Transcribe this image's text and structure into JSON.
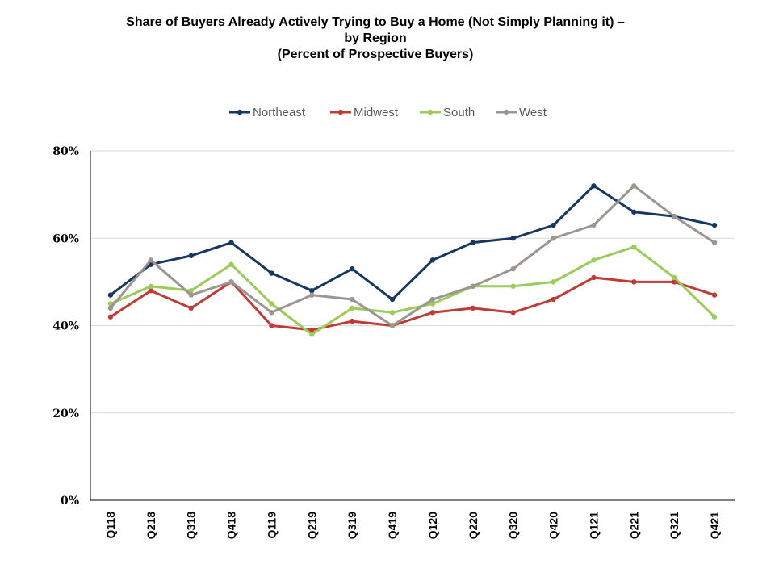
{
  "chart_data": {
    "type": "line",
    "title_lines": [
      "Share of Buyers Already Actively Trying to Buy a Home (Not Simply Planning it) –",
      "by Region",
      "(Percent of Prospective Buyers)"
    ],
    "xlabel": "",
    "ylabel": "",
    "x": [
      "Q118",
      "Q218",
      "Q318",
      "Q418",
      "Q119",
      "Q219",
      "Q319",
      "Q419",
      "Q120",
      "Q220",
      "Q320",
      "Q420",
      "Q121",
      "Q221",
      "Q321",
      "Q421"
    ],
    "ylim": [
      0,
      80
    ],
    "yticks": [
      0,
      20,
      40,
      60,
      80
    ],
    "ytick_labels": [
      "0%",
      "20%",
      "40%",
      "60%",
      "80%"
    ],
    "grid": true,
    "legend_position": "top",
    "series": [
      {
        "name": "Northeast",
        "color": "#17375E",
        "values": [
          47,
          54,
          56,
          59,
          52,
          48,
          53,
          46,
          55,
          59,
          60,
          63,
          72,
          66,
          65,
          63
        ]
      },
      {
        "name": "Midwest",
        "color": "#BE3B36",
        "values": [
          42,
          48,
          44,
          50,
          40,
          39,
          41,
          40,
          43,
          44,
          43,
          46,
          51,
          50,
          50,
          47
        ]
      },
      {
        "name": "South",
        "color": "#9BCB5A",
        "values": [
          45,
          49,
          48,
          54,
          45,
          38,
          44,
          43,
          45,
          49,
          49,
          50,
          55,
          58,
          51,
          42
        ]
      },
      {
        "name": "West",
        "color": "#9C9590",
        "values": [
          44,
          55,
          47,
          50,
          43,
          47,
          46,
          40,
          46,
          49,
          53,
          60,
          63,
          72,
          65,
          59
        ]
      }
    ]
  }
}
